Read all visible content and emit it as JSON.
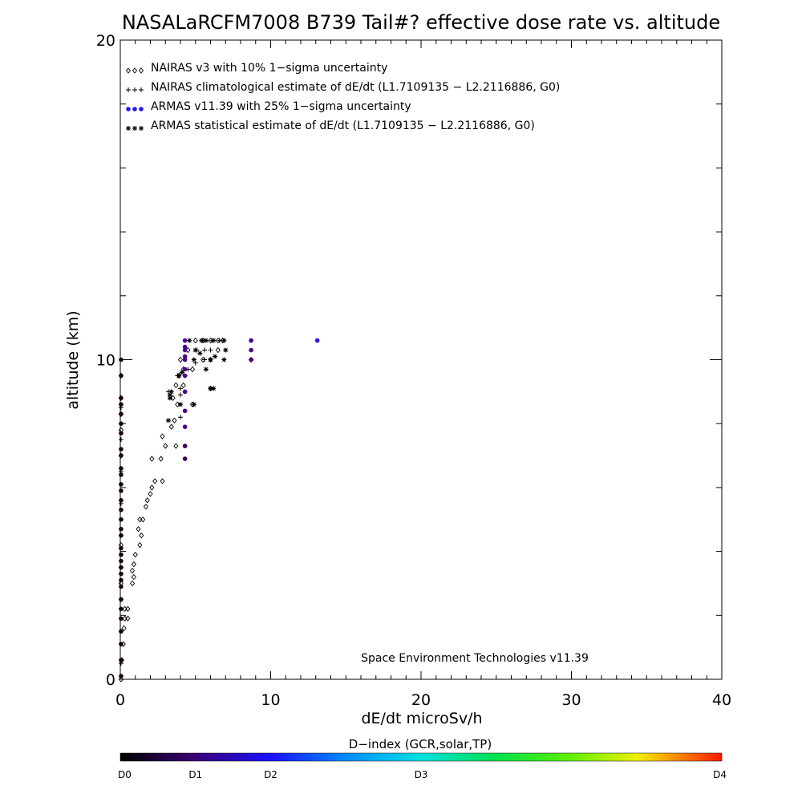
{
  "chart_data": {
    "type": "scatter",
    "title": "NASALaRCFM7008  B739 Tail#? effective dose rate vs. altitude",
    "xlabel": "dE/dt microSv/h",
    "ylabel": "altitude (km)",
    "xlim": [
      0,
      40
    ],
    "ylim": [
      0,
      20
    ],
    "x_ticks": [
      0,
      10,
      20,
      30,
      40
    ],
    "y_ticks": [
      0,
      10,
      20
    ],
    "x_minor_step": 1,
    "y_minor_step": 2,
    "grid": false,
    "legend_position": "top-left",
    "credit": "Space Environment Technologies v11.39",
    "colorbar": {
      "title": "D−index (GCR,solar,TP)",
      "labels": [
        "D0",
        "D1",
        "D2",
        "D3",
        "D4"
      ],
      "label_positions": [
        0,
        0.125,
        0.25,
        0.5,
        1.0
      ]
    },
    "colors": {
      "nairas": "#000000",
      "armas_d0": "#1a0010",
      "armas_d05": "#3a0050",
      "armas_d1": "#4b0090",
      "armas_d15": "#2a18e8"
    },
    "series": [
      {
        "name": "NAIRAS v3 with 10% 1−sigma uncertainty",
        "marker": "diamond",
        "points": [
          [
            0.05,
            0.0
          ],
          [
            0.1,
            0.6
          ],
          [
            0.2,
            1.1
          ],
          [
            0.25,
            1.6
          ],
          [
            0.3,
            1.9
          ],
          [
            0.3,
            2.2
          ],
          [
            0.5,
            2.2
          ],
          [
            0.5,
            1.9
          ],
          [
            0.05,
            3.0
          ],
          [
            0.8,
            3.0
          ],
          [
            0.9,
            3.2
          ],
          [
            0.8,
            3.4
          ],
          [
            0.9,
            3.6
          ],
          [
            1.0,
            3.9
          ],
          [
            0.05,
            4.2
          ],
          [
            1.3,
            4.2
          ],
          [
            1.4,
            4.5
          ],
          [
            1.2,
            4.7
          ],
          [
            1.3,
            5.0
          ],
          [
            1.5,
            5.0
          ],
          [
            1.7,
            5.4
          ],
          [
            2.0,
            5.8
          ],
          [
            1.8,
            5.6
          ],
          [
            2.1,
            6.0
          ],
          [
            2.3,
            6.2
          ],
          [
            2.8,
            6.2
          ],
          [
            2.1,
            6.9
          ],
          [
            2.7,
            6.9
          ],
          [
            3.0,
            7.3
          ],
          [
            3.7,
            7.3
          ],
          [
            2.8,
            7.6
          ],
          [
            3.4,
            7.9
          ],
          [
            3.6,
            8.1
          ],
          [
            3.8,
            8.6
          ],
          [
            4.8,
            8.6
          ],
          [
            3.5,
            8.8
          ],
          [
            3.7,
            9.2
          ],
          [
            4.2,
            9.2
          ],
          [
            3.9,
            9.5
          ],
          [
            4.2,
            9.7
          ],
          [
            4.8,
            9.7
          ],
          [
            4.0,
            10.0
          ],
          [
            5.5,
            10.0
          ],
          [
            6.0,
            10.0
          ],
          [
            4.5,
            10.3
          ],
          [
            6.5,
            10.3
          ],
          [
            6.0,
            9.1
          ],
          [
            5.0,
            10.6
          ],
          [
            5.5,
            10.6
          ],
          [
            6.0,
            10.6
          ],
          [
            6.5,
            10.6
          ],
          [
            6.8,
            10.6
          ],
          [
            8.7,
            10.0
          ],
          [
            0.05,
            7.0
          ],
          [
            0.05,
            7.8
          ],
          [
            0.05,
            8.3
          ],
          [
            0.05,
            8.8
          ],
          [
            0.05,
            9.5
          ]
        ]
      },
      {
        "name": "NAIRAS climatological estimate of dE/dt (L1.7109135 − L2.2116886, G0)",
        "marker": "plus",
        "points": [
          [
            0.05,
            0.5
          ],
          [
            0.05,
            1.5
          ],
          [
            0.05,
            2.5
          ],
          [
            0.05,
            3.5
          ],
          [
            0.05,
            4.5
          ],
          [
            0.05,
            5.5
          ],
          [
            0.05,
            6.5
          ],
          [
            0.05,
            7.5
          ],
          [
            0.05,
            8.5
          ],
          [
            4.0,
            8.2
          ],
          [
            3.2,
            9.0
          ],
          [
            4.0,
            8.9
          ],
          [
            4.0,
            9.1
          ],
          [
            3.8,
            9.5
          ],
          [
            4.3,
            9.5
          ],
          [
            4.5,
            9.7
          ],
          [
            5.0,
            9.9
          ],
          [
            5.6,
            10.0
          ],
          [
            5.1,
            10.3
          ],
          [
            5.6,
            10.3
          ],
          [
            6.0,
            10.3
          ],
          [
            5.5,
            10.6
          ],
          [
            6.1,
            10.6
          ],
          [
            6.6,
            10.6
          ]
        ]
      },
      {
        "name": "ARMAS v11.39 with 25% 1−sigma uncertainty",
        "marker": "dot",
        "points": [
          [
            0.05,
            0.1,
            0.0
          ],
          [
            0.05,
            0.6,
            0.0
          ],
          [
            0.05,
            1.1,
            0.0
          ],
          [
            0.05,
            1.5,
            0.0
          ],
          [
            0.05,
            1.9,
            0.0
          ],
          [
            0.05,
            2.2,
            0.0
          ],
          [
            0.05,
            2.5,
            0.0
          ],
          [
            0.05,
            2.9,
            0.0
          ],
          [
            0.05,
            3.1,
            0.0
          ],
          [
            0.05,
            3.3,
            0.0
          ],
          [
            0.05,
            3.5,
            0.0
          ],
          [
            0.05,
            3.7,
            0.0
          ],
          [
            0.05,
            3.9,
            0.0
          ],
          [
            0.05,
            4.1,
            0.0
          ],
          [
            0.05,
            4.5,
            0.0
          ],
          [
            0.05,
            4.7,
            0.0
          ],
          [
            0.05,
            5.0,
            0.0
          ],
          [
            0.05,
            5.3,
            0.0
          ],
          [
            0.05,
            5.6,
            0.0
          ],
          [
            0.05,
            5.9,
            0.0
          ],
          [
            0.05,
            6.1,
            0.0
          ],
          [
            0.05,
            6.4,
            0.0
          ],
          [
            0.05,
            6.6,
            0.0
          ],
          [
            0.05,
            7.0,
            0.0
          ],
          [
            0.05,
            7.2,
            0.0
          ],
          [
            0.05,
            7.7,
            0.0
          ],
          [
            0.05,
            8.0,
            0.0
          ],
          [
            0.05,
            8.3,
            0.0
          ],
          [
            0.05,
            8.6,
            0.0
          ],
          [
            0.05,
            8.8,
            0.0
          ],
          [
            0.05,
            9.5,
            0.0
          ],
          [
            0.05,
            10.0,
            0.0
          ],
          [
            4.3,
            6.9,
            0.05
          ],
          [
            4.3,
            7.3,
            0.07
          ],
          [
            4.3,
            7.9,
            0.08
          ],
          [
            4.3,
            8.4,
            0.08
          ],
          [
            4.3,
            9.0,
            0.09
          ],
          [
            4.3,
            9.5,
            0.1
          ],
          [
            4.3,
            9.7,
            0.1
          ],
          [
            4.3,
            10.0,
            0.1
          ],
          [
            4.3,
            10.1,
            0.1
          ],
          [
            4.3,
            10.3,
            0.1
          ],
          [
            4.3,
            10.4,
            0.1
          ],
          [
            4.3,
            10.6,
            0.1
          ],
          [
            8.7,
            10.0,
            0.11
          ],
          [
            8.7,
            10.3,
            0.11
          ],
          [
            8.7,
            10.6,
            0.12
          ],
          [
            13.1,
            10.6,
            0.2
          ]
        ]
      },
      {
        "name": "ARMAS statistical estimate of dE/dt (L1.7109135 − L2.2116886, G0)",
        "marker": "asterisk",
        "points": [
          [
            3.2,
            8.1
          ],
          [
            3.3,
            8.8
          ],
          [
            3.3,
            8.9
          ],
          [
            3.4,
            9.0
          ],
          [
            4.0,
            8.6
          ],
          [
            4.9,
            8.6
          ],
          [
            3.9,
            9.5
          ],
          [
            4.1,
            9.6
          ],
          [
            4.9,
            10.0
          ],
          [
            5.3,
            10.2
          ],
          [
            6.0,
            10.0
          ],
          [
            6.3,
            10.1
          ],
          [
            7.0,
            10.3
          ],
          [
            6.9,
            10.0
          ],
          [
            6.2,
            9.1
          ],
          [
            6.0,
            9.1
          ],
          [
            5.7,
            9.7
          ],
          [
            5.0,
            10.3
          ],
          [
            4.6,
            10.6
          ],
          [
            5.4,
            10.6
          ],
          [
            5.7,
            10.6
          ],
          [
            6.2,
            10.6
          ],
          [
            6.9,
            10.6
          ]
        ]
      }
    ]
  }
}
